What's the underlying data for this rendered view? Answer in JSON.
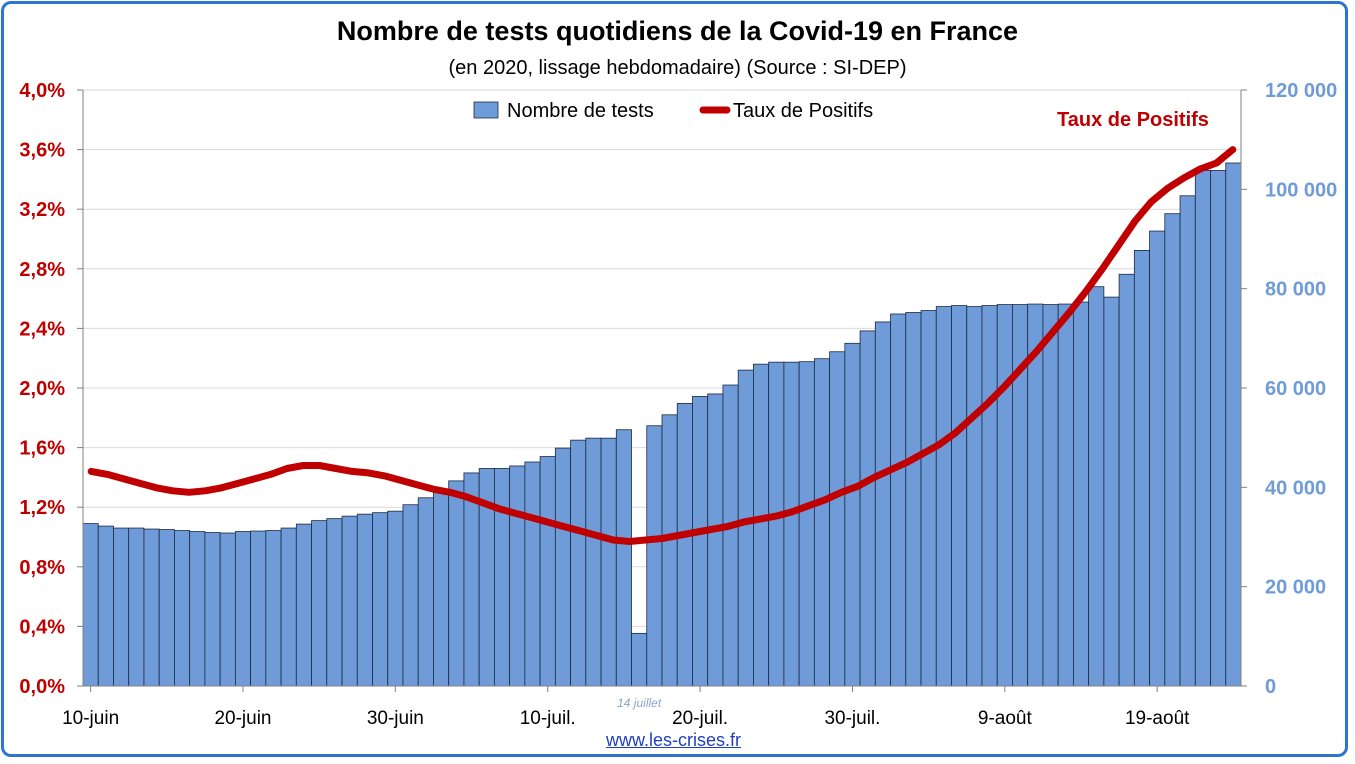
{
  "title": "Nombre de tests quotidiens de la Covid-19 en France",
  "subtitle": "(en 2020, lissage hebdomadaire) (Source : SI-DEP)",
  "credit": "www.les-crises.fr",
  "colors": {
    "bars": "#6f9bd8",
    "bar_border": "#1a2a44",
    "line": "#c00000",
    "left_axis": "#c00000",
    "right_axis": "#6f9bd8",
    "frame": "#2e75d0"
  },
  "chart_data": {
    "type": "bar+line",
    "categories_start": "10-juin",
    "x_tick_labels": [
      "10-juin",
      "20-juin",
      "30-juin",
      "10-juil.",
      "20-juil.",
      "30-juil.",
      "9-août",
      "19-août"
    ],
    "annotation_bar": "14 juillet",
    "line_annotation": "Taux de Positifs",
    "legend": [
      "Nombre de tests",
      "Taux de Positifs"
    ],
    "legend_position": "top-center",
    "grid": true,
    "y_left": {
      "label": "",
      "range": [
        0,
        0.04
      ],
      "ticks": [
        "0,0%",
        "0,4%",
        "0,8%",
        "1,2%",
        "1,6%",
        "2,0%",
        "2,4%",
        "2,8%",
        "3,2%",
        "3,6%",
        "4,0%"
      ]
    },
    "y_right": {
      "label": "",
      "range": [
        0,
        120000
      ],
      "ticks": [
        "0",
        "20 000",
        "40 000",
        "60 000",
        "80 000",
        "100 000",
        "120 000"
      ]
    },
    "series": [
      {
        "name": "Nombre de tests",
        "type": "bar",
        "axis": "right",
        "values": [
          32700,
          32200,
          31800,
          31800,
          31600,
          31500,
          31300,
          31100,
          30900,
          30800,
          31100,
          31200,
          31300,
          31800,
          32600,
          33300,
          33700,
          34200,
          34600,
          34900,
          35200,
          36500,
          37900,
          39400,
          41300,
          42900,
          43800,
          43800,
          44300,
          45100,
          46200,
          47900,
          49500,
          49900,
          49900,
          51600,
          10600,
          52400,
          54600,
          56900,
          58300,
          58800,
          60600,
          63600,
          64800,
          65200,
          65200,
          65300,
          65900,
          67300,
          69000,
          71500,
          73300,
          74900,
          75200,
          75600,
          76400,
          76600,
          76400,
          76600,
          76800,
          76800,
          76900,
          76800,
          76900,
          77300,
          80400,
          78300,
          82900,
          87700,
          91600,
          95100,
          98700,
          103800,
          103800,
          105300
        ]
      },
      {
        "name": "Taux de Positifs",
        "type": "line",
        "axis": "left",
        "values": [
          0.0144,
          0.0142,
          0.0139,
          0.0136,
          0.0133,
          0.0131,
          0.013,
          0.0131,
          0.0133,
          0.0136,
          0.0139,
          0.0142,
          0.0146,
          0.0148,
          0.0148,
          0.0146,
          0.0144,
          0.0143,
          0.0141,
          0.0138,
          0.0135,
          0.0132,
          0.013,
          0.0127,
          0.0123,
          0.0119,
          0.0116,
          0.0113,
          0.011,
          0.0107,
          0.0104,
          0.0101,
          0.0098,
          0.0097,
          0.0098,
          0.0099,
          0.0101,
          0.0103,
          0.0105,
          0.0107,
          0.011,
          0.0112,
          0.0114,
          0.0117,
          0.0121,
          0.0125,
          0.013,
          0.0134,
          0.014,
          0.0145,
          0.015,
          0.0156,
          0.0162,
          0.017,
          0.018,
          0.019,
          0.0201,
          0.0213,
          0.0225,
          0.0238,
          0.0251,
          0.0265,
          0.028,
          0.0296,
          0.0312,
          0.0325,
          0.0334,
          0.0341,
          0.0347,
          0.0351,
          0.036
        ]
      }
    ]
  }
}
